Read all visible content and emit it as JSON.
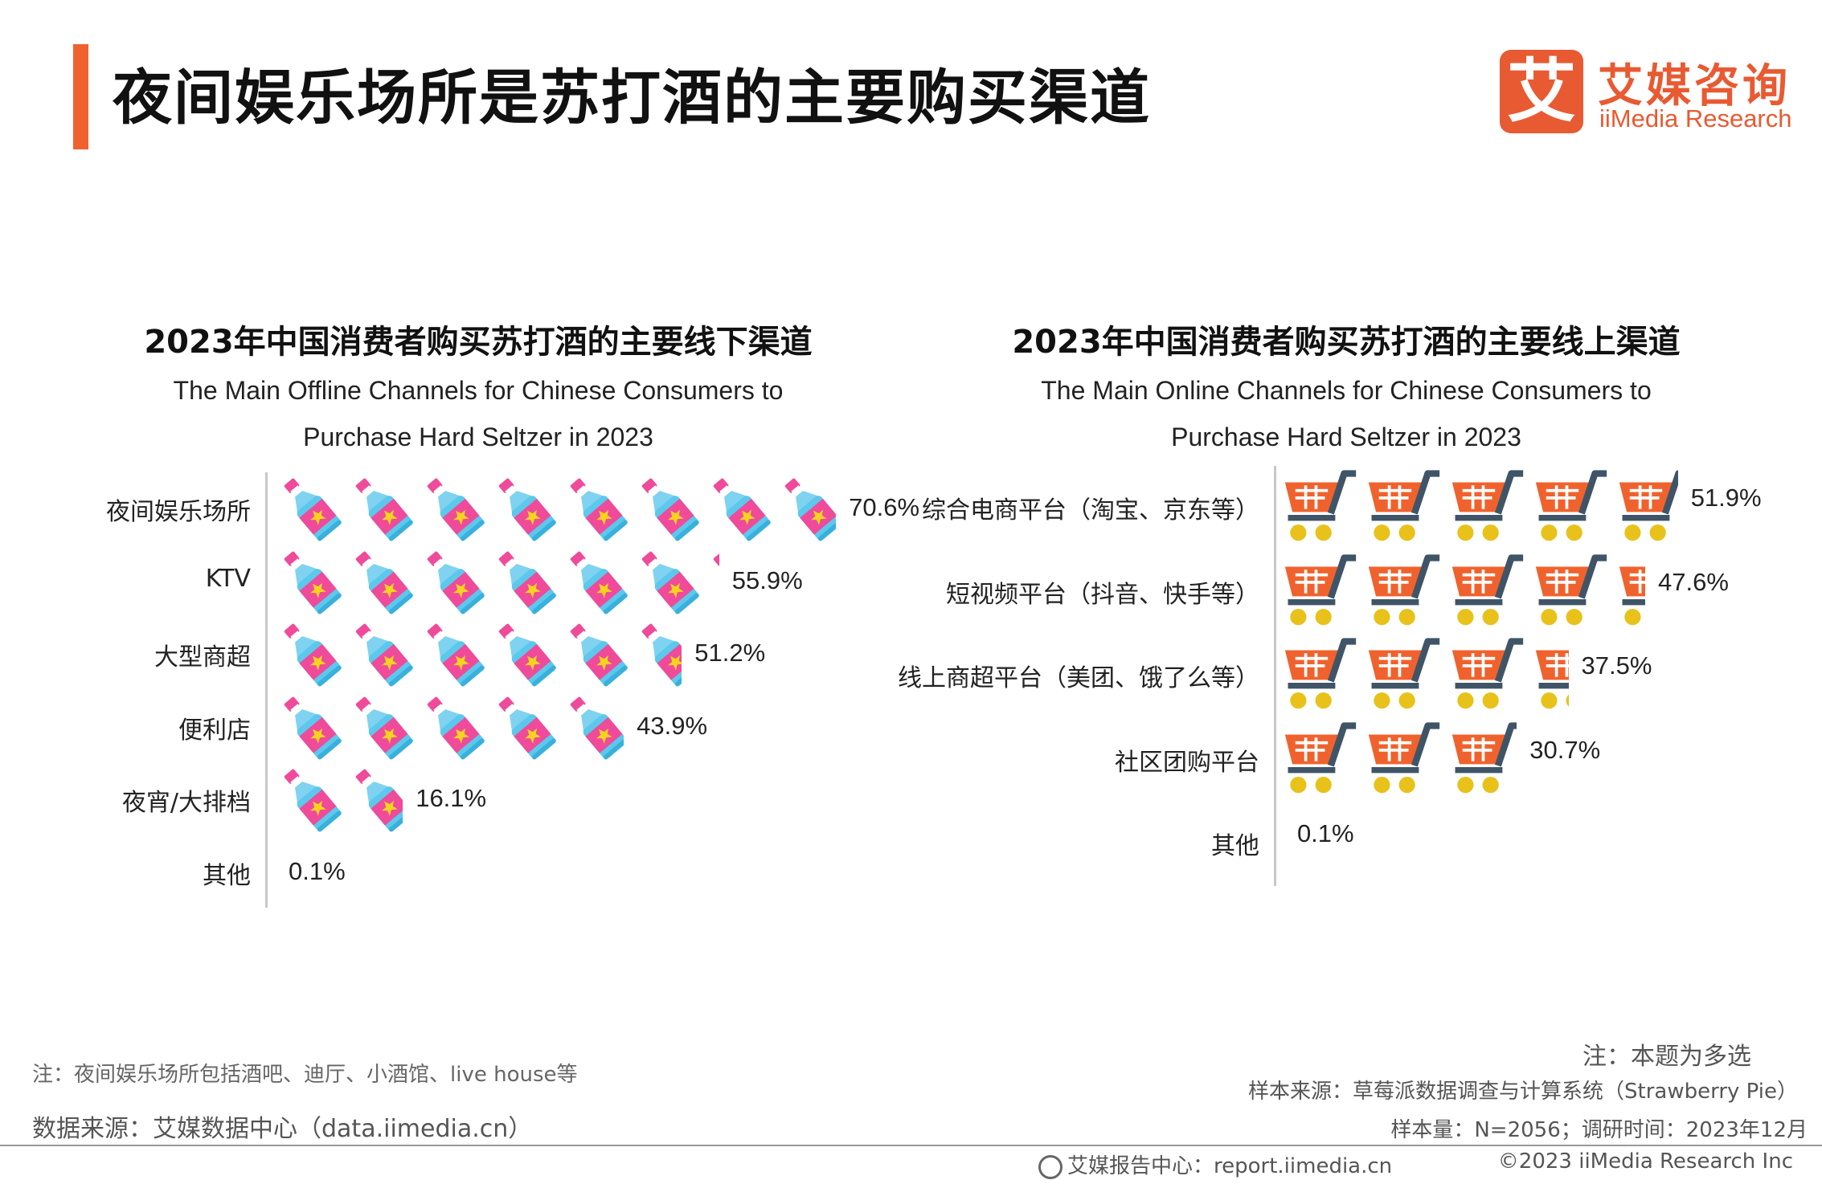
{
  "header": {
    "title": "夜间娱乐场所是苏打酒的主要购买渠道",
    "logo_mark": "艾",
    "logo_cn": "艾媒咨询",
    "logo_en": "iiMedia Research",
    "accent_color": "#f0622d"
  },
  "chart_data": [
    {
      "type": "bar",
      "title": "2023年中国消费者购买苏打酒的主要线下渠道",
      "subtitle_line1": "The Main Offline Channels for Chinese Consumers to",
      "subtitle_line2": "Purchase Hard Seltzer in 2023",
      "orientation": "horizontal",
      "icon": "bottle-icon",
      "categories": [
        "夜间娱乐场所",
        "KTV",
        "大型商超",
        "便利店",
        "夜宵/大排档",
        "其他"
      ],
      "values": [
        70.6,
        55.9,
        51.2,
        43.9,
        16.1,
        0.1
      ],
      "value_labels": [
        "70.6%",
        "55.9%",
        "51.2%",
        "43.9%",
        "16.1%",
        "0.1%"
      ],
      "unit": "%"
    },
    {
      "type": "bar",
      "title": "2023年中国消费者购买苏打酒的主要线上渠道",
      "subtitle_line1": "The Main Online Channels for Chinese Consumers to",
      "subtitle_line2": "Purchase Hard Seltzer in 2023",
      "orientation": "horizontal",
      "icon": "shopping-cart-icon",
      "categories": [
        "综合电商平台（淘宝、京东等）",
        "短视频平台（抖音、快手等）",
        "线上商超平台（美团、饿了么等）",
        "社区团购平台",
        "其他"
      ],
      "values": [
        51.9,
        47.6,
        37.5,
        30.7,
        0.1
      ],
      "value_labels": [
        "51.9%",
        "47.6%",
        "37.5%",
        "30.7%",
        "0.1%"
      ],
      "unit": "%"
    }
  ],
  "notes": {
    "left_note": "注：夜间娱乐场所包括酒吧、迪厅、小酒馆、live house等",
    "data_source": "数据来源：艾媒数据中心（data.iimedia.cn）",
    "multi_choice": "注：本题为多选",
    "sample_source": "样本来源：草莓派数据调查与计算系统（Strawberry Pie）",
    "sample_size": "样本量：N=2056；调研时间：2023年12月"
  },
  "footer": {
    "report_center": "艾媒报告中心：report.iimedia.cn",
    "copyright": "©2023  iiMedia Research  Inc"
  },
  "colors": {
    "bottle_body": "#5bc8ec",
    "bottle_label": "#ef4b9a",
    "star": "#f5d31f",
    "cart_basket": "#f0622d",
    "cart_handle": "#3f5567",
    "cart_wheel": "#e8c21a"
  }
}
